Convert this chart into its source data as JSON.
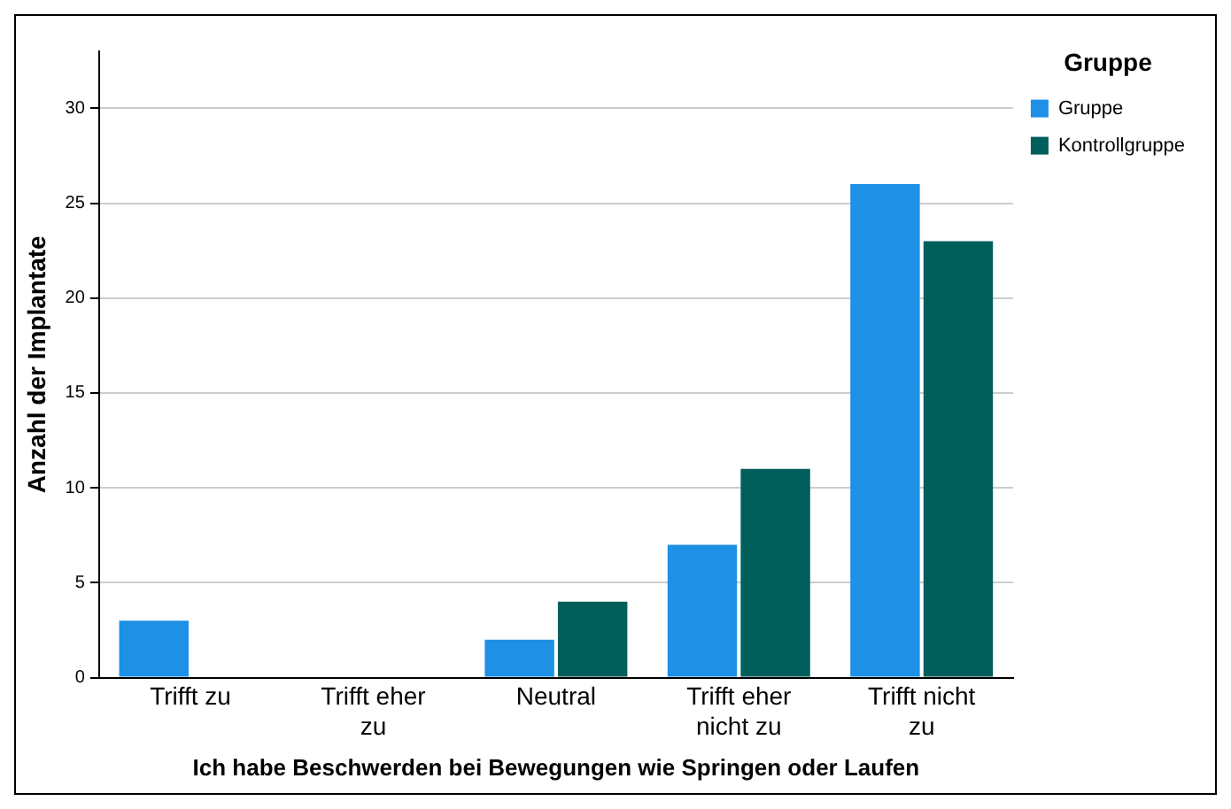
{
  "chart_data": {
    "type": "bar",
    "xlabel": "Ich habe Beschwerden bei Bewegungen wie Springen oder Laufen",
    "ylabel": "Anzahl der Implantate",
    "legend_title": "Gruppe",
    "categories": [
      "Trifft zu",
      "Trifft eher zu",
      "Neutral",
      "Trifft eher nicht zu",
      "Trifft nicht zu"
    ],
    "series": [
      {
        "name": "Gruppe",
        "color": "#1e90e6",
        "values": [
          3,
          0,
          2,
          7,
          26
        ]
      },
      {
        "name": "Kontrollgruppe",
        "color": "#005f5b",
        "values": [
          0,
          0,
          4,
          11,
          23
        ]
      }
    ],
    "ylim": [
      0,
      33
    ],
    "yticks": [
      0,
      5,
      10,
      15,
      20,
      25,
      30
    ],
    "grid": "y",
    "legend": "top right"
  }
}
